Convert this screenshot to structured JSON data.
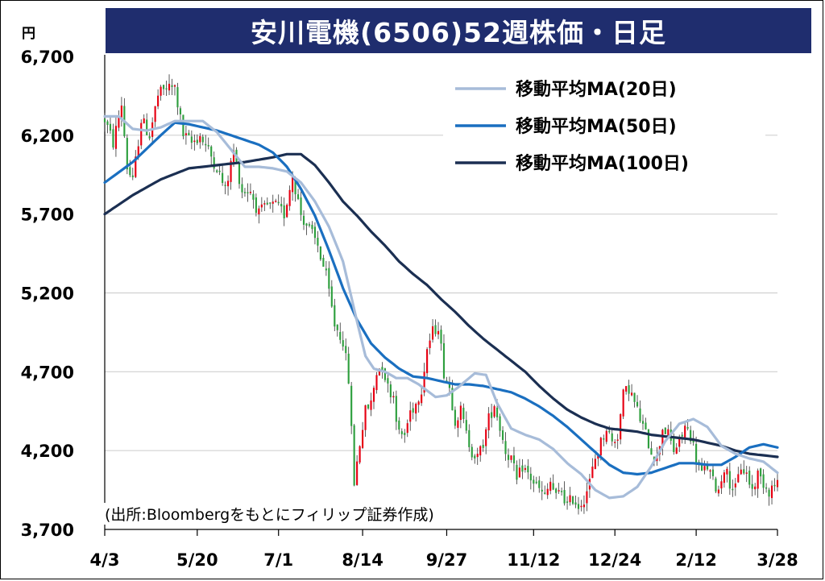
{
  "title": "安川電機(6506)52週株価・日足",
  "unit": "円",
  "source": "(出所:Bloombergをもとにフィリップ証券作成)",
  "chart_data": {
    "type": "candlestick",
    "ylim": [
      3700,
      6700
    ],
    "y_ticks": [
      "6,700",
      "6,200",
      "5,700",
      "5,200",
      "4,700",
      "4,200",
      "3,700"
    ],
    "y_tick_values": [
      6700,
      6200,
      5700,
      5200,
      4700,
      4200,
      3700
    ],
    "x_ticks": [
      "4/3",
      "5/20",
      "7/1",
      "8/14",
      "9/27",
      "11/12",
      "12/24",
      "2/12",
      "3/28"
    ],
    "x_tick_index": [
      0,
      33,
      62,
      92,
      122,
      153,
      182,
      211,
      240
    ],
    "n_days": 241,
    "grid": true,
    "legend_position": "top-right",
    "colors": {
      "up": "#e60012",
      "down": "#2e9f3e",
      "ma20": "#a7bcd9",
      "ma50": "#1a6fc0",
      "ma100": "#1b2f52",
      "grid": "#d0d0d0"
    },
    "series": [
      {
        "name": "移動平均MA(20日)",
        "key": "ma20",
        "anchors": [
          [
            0,
            6320
          ],
          [
            5,
            6320
          ],
          [
            10,
            6240
          ],
          [
            15,
            6230
          ],
          [
            20,
            6250
          ],
          [
            25,
            6290
          ],
          [
            30,
            6290
          ],
          [
            35,
            6290
          ],
          [
            40,
            6220
          ],
          [
            45,
            6110
          ],
          [
            50,
            6000
          ],
          [
            55,
            6000
          ],
          [
            60,
            5990
          ],
          [
            65,
            5970
          ],
          [
            70,
            5900
          ],
          [
            75,
            5780
          ],
          [
            80,
            5620
          ],
          [
            85,
            5400
          ],
          [
            90,
            5020
          ],
          [
            93,
            4800
          ],
          [
            96,
            4720
          ],
          [
            100,
            4700
          ],
          [
            104,
            4660
          ],
          [
            108,
            4660
          ],
          [
            112,
            4620
          ],
          [
            118,
            4540
          ],
          [
            122,
            4550
          ],
          [
            126,
            4600
          ],
          [
            132,
            4690
          ],
          [
            136,
            4680
          ],
          [
            140,
            4500
          ],
          [
            145,
            4340
          ],
          [
            150,
            4300
          ],
          [
            155,
            4270
          ],
          [
            160,
            4210
          ],
          [
            165,
            4120
          ],
          [
            170,
            4050
          ],
          [
            175,
            3950
          ],
          [
            180,
            3900
          ],
          [
            185,
            3910
          ],
          [
            190,
            3970
          ],
          [
            195,
            4100
          ],
          [
            200,
            4260
          ],
          [
            205,
            4370
          ],
          [
            210,
            4400
          ],
          [
            215,
            4350
          ],
          [
            220,
            4230
          ],
          [
            225,
            4180
          ],
          [
            230,
            4150
          ],
          [
            235,
            4130
          ],
          [
            240,
            4060
          ]
        ]
      },
      {
        "name": "移動平均MA(50日)",
        "key": "ma50",
        "anchors": [
          [
            0,
            5900
          ],
          [
            10,
            6030
          ],
          [
            20,
            6200
          ],
          [
            25,
            6280
          ],
          [
            30,
            6270
          ],
          [
            40,
            6230
          ],
          [
            50,
            6170
          ],
          [
            55,
            6140
          ],
          [
            60,
            6090
          ],
          [
            65,
            6000
          ],
          [
            70,
            5860
          ],
          [
            75,
            5690
          ],
          [
            80,
            5470
          ],
          [
            85,
            5230
          ],
          [
            90,
            5030
          ],
          [
            95,
            4880
          ],
          [
            100,
            4790
          ],
          [
            105,
            4720
          ],
          [
            110,
            4670
          ],
          [
            115,
            4660
          ],
          [
            120,
            4640
          ],
          [
            125,
            4620
          ],
          [
            130,
            4620
          ],
          [
            135,
            4610
          ],
          [
            140,
            4590
          ],
          [
            145,
            4570
          ],
          [
            150,
            4530
          ],
          [
            155,
            4480
          ],
          [
            160,
            4420
          ],
          [
            165,
            4350
          ],
          [
            170,
            4270
          ],
          [
            175,
            4190
          ],
          [
            180,
            4110
          ],
          [
            185,
            4060
          ],
          [
            190,
            4050
          ],
          [
            195,
            4060
          ],
          [
            200,
            4090
          ],
          [
            205,
            4120
          ],
          [
            210,
            4120
          ],
          [
            215,
            4110
          ],
          [
            220,
            4110
          ],
          [
            225,
            4160
          ],
          [
            230,
            4220
          ],
          [
            235,
            4240
          ],
          [
            240,
            4220
          ]
        ]
      },
      {
        "name": "移動平均MA(100日)",
        "key": "ma100",
        "anchors": [
          [
            0,
            5700
          ],
          [
            10,
            5820
          ],
          [
            20,
            5920
          ],
          [
            30,
            5990
          ],
          [
            40,
            6010
          ],
          [
            50,
            6030
          ],
          [
            60,
            6060
          ],
          [
            65,
            6080
          ],
          [
            70,
            6080
          ],
          [
            75,
            6010
          ],
          [
            80,
            5900
          ],
          [
            85,
            5780
          ],
          [
            90,
            5690
          ],
          [
            95,
            5590
          ],
          [
            100,
            5500
          ],
          [
            105,
            5400
          ],
          [
            110,
            5320
          ],
          [
            115,
            5250
          ],
          [
            120,
            5160
          ],
          [
            125,
            5080
          ],
          [
            130,
            4990
          ],
          [
            135,
            4910
          ],
          [
            140,
            4840
          ],
          [
            145,
            4770
          ],
          [
            150,
            4700
          ],
          [
            155,
            4610
          ],
          [
            160,
            4530
          ],
          [
            165,
            4460
          ],
          [
            170,
            4410
          ],
          [
            175,
            4370
          ],
          [
            180,
            4340
          ],
          [
            185,
            4330
          ],
          [
            190,
            4320
          ],
          [
            195,
            4300
          ],
          [
            200,
            4290
          ],
          [
            205,
            4280
          ],
          [
            210,
            4270
          ],
          [
            215,
            4250
          ],
          [
            220,
            4230
          ],
          [
            225,
            4200
          ],
          [
            230,
            4180
          ],
          [
            235,
            4170
          ],
          [
            240,
            4160
          ]
        ]
      },
      {
        "name": "price",
        "key": "price",
        "anchors": [
          [
            0,
            6300
          ],
          [
            3,
            6150
          ],
          [
            6,
            6400
          ],
          [
            8,
            6000
          ],
          [
            10,
            5900
          ],
          [
            13,
            6300
          ],
          [
            16,
            6200
          ],
          [
            19,
            6450
          ],
          [
            22,
            6500
          ],
          [
            25,
            6500
          ],
          [
            28,
            6200
          ],
          [
            31,
            6150
          ],
          [
            34,
            6200
          ],
          [
            37,
            6100
          ],
          [
            40,
            6000
          ],
          [
            43,
            5850
          ],
          [
            46,
            6100
          ],
          [
            49,
            5850
          ],
          [
            52,
            5850
          ],
          [
            55,
            5700
          ],
          [
            58,
            5750
          ],
          [
            61,
            5750
          ],
          [
            64,
            5700
          ],
          [
            67,
            5950
          ],
          [
            70,
            5700
          ],
          [
            73,
            5600
          ],
          [
            76,
            5500
          ],
          [
            79,
            5300
          ],
          [
            82,
            5000
          ],
          [
            85,
            4900
          ],
          [
            87,
            4650
          ],
          [
            89,
            4000
          ],
          [
            91,
            4250
          ],
          [
            93,
            4450
          ],
          [
            95,
            4500
          ],
          [
            97,
            4700
          ],
          [
            99,
            4750
          ],
          [
            101,
            4600
          ],
          [
            103,
            4550
          ],
          [
            105,
            4300
          ],
          [
            107,
            4300
          ],
          [
            109,
            4450
          ],
          [
            111,
            4500
          ],
          [
            113,
            4600
          ],
          [
            115,
            4850
          ],
          [
            117,
            4950
          ],
          [
            119,
            5000
          ],
          [
            121,
            4700
          ],
          [
            123,
            4600
          ],
          [
            125,
            4400
          ],
          [
            127,
            4450
          ],
          [
            129,
            4300
          ],
          [
            131,
            4200
          ],
          [
            133,
            4150
          ],
          [
            135,
            4250
          ],
          [
            137,
            4400
          ],
          [
            139,
            4500
          ],
          [
            141,
            4350
          ],
          [
            143,
            4200
          ],
          [
            145,
            4150
          ],
          [
            147,
            4000
          ],
          [
            149,
            4100
          ],
          [
            151,
            4050
          ],
          [
            153,
            4000
          ],
          [
            155,
            3950
          ],
          [
            157,
            3900
          ],
          [
            159,
            4000
          ],
          [
            161,
            3900
          ],
          [
            163,
            3950
          ],
          [
            165,
            3850
          ],
          [
            167,
            3900
          ],
          [
            169,
            3850
          ],
          [
            171,
            3900
          ],
          [
            173,
            4000
          ],
          [
            175,
            4150
          ],
          [
            177,
            4250
          ],
          [
            179,
            4350
          ],
          [
            181,
            4250
          ],
          [
            183,
            4300
          ],
          [
            185,
            4550
          ],
          [
            187,
            4600
          ],
          [
            189,
            4500
          ],
          [
            191,
            4400
          ],
          [
            193,
            4300
          ],
          [
            195,
            4200
          ],
          [
            197,
            4150
          ],
          [
            199,
            4350
          ],
          [
            201,
            4300
          ],
          [
            203,
            4200
          ],
          [
            205,
            4250
          ],
          [
            207,
            4350
          ],
          [
            209,
            4300
          ],
          [
            211,
            4150
          ],
          [
            213,
            4050
          ],
          [
            215,
            4100
          ],
          [
            217,
            4000
          ],
          [
            219,
            3950
          ],
          [
            221,
            4100
          ],
          [
            223,
            4000
          ],
          [
            225,
            3950
          ],
          [
            227,
            4100
          ],
          [
            229,
            4050
          ],
          [
            231,
            3950
          ],
          [
            233,
            4050
          ],
          [
            235,
            4000
          ],
          [
            237,
            3950
          ],
          [
            240,
            4000
          ]
        ]
      }
    ]
  }
}
